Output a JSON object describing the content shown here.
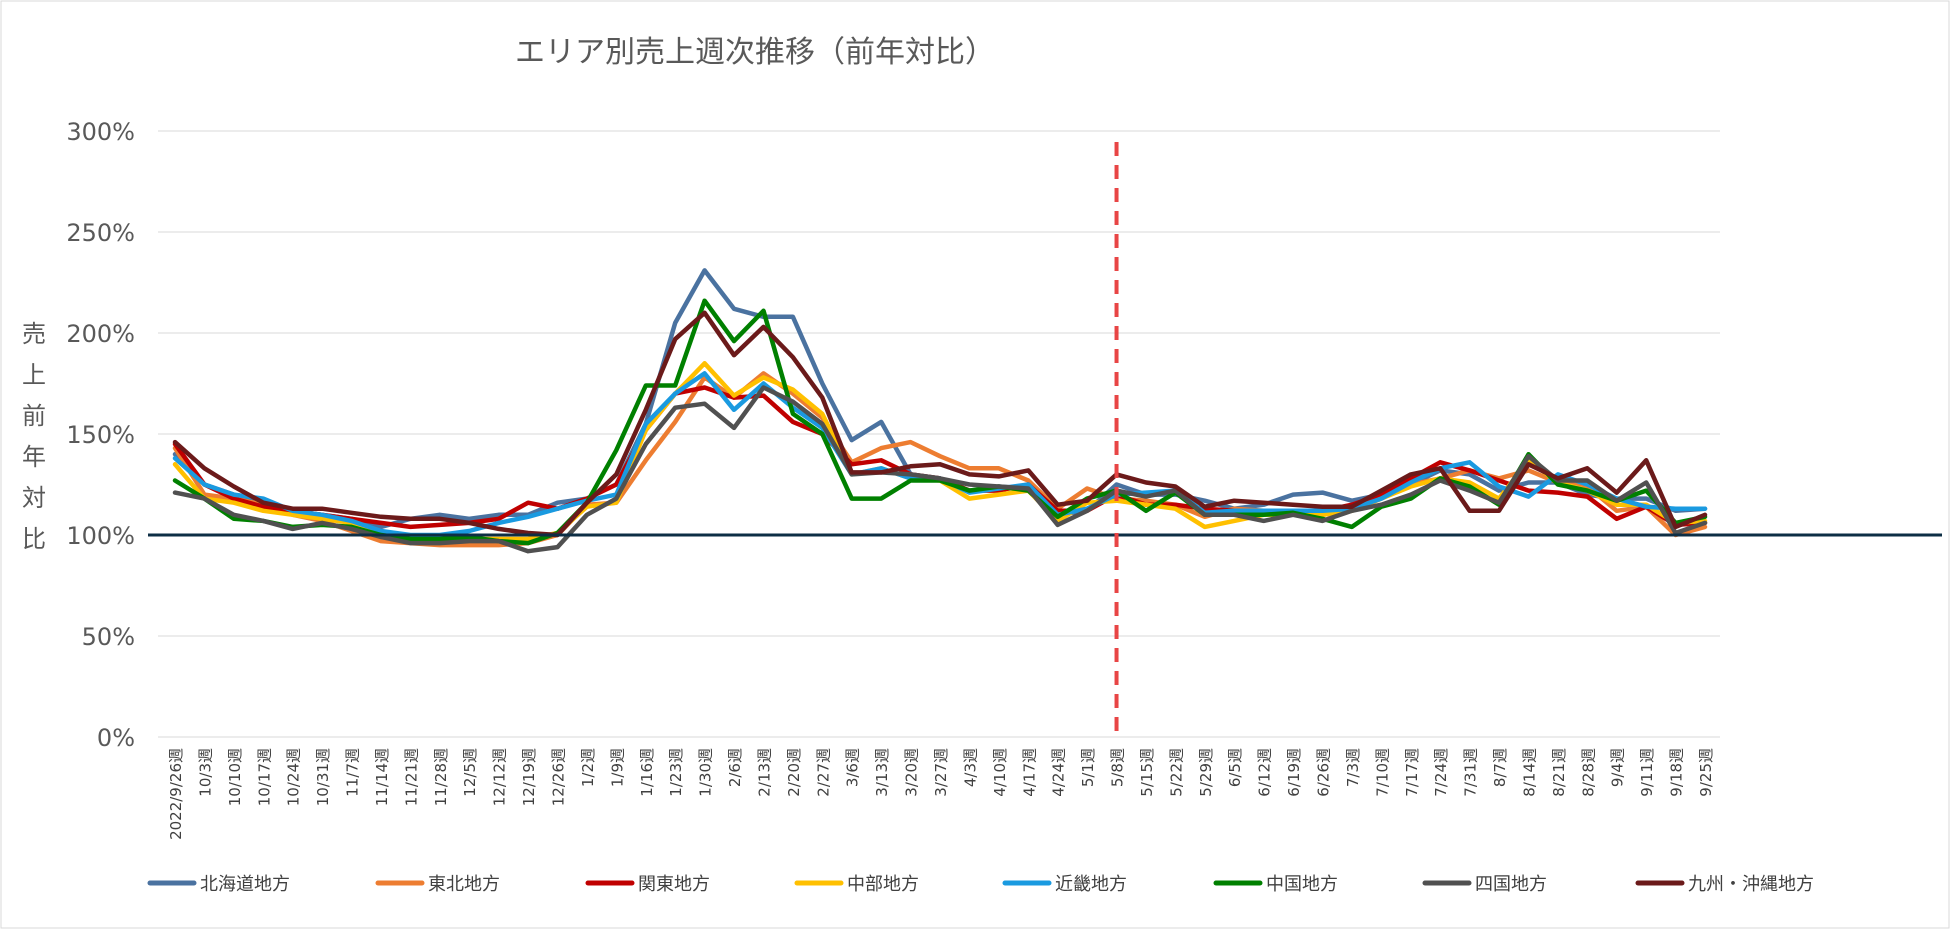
{
  "chart_data": {
    "type": "line",
    "title": "エリア別売上週次推移（前年対比）",
    "ylabel": "売上前年対比",
    "xlabel": "",
    "ylim": [
      0,
      300
    ],
    "yticks": [
      "0%",
      "50%",
      "100%",
      "150%",
      "200%",
      "250%",
      "300%"
    ],
    "yticks_values": [
      0,
      50,
      100,
      150,
      200,
      250,
      300
    ],
    "grid": true,
    "legend_position": "bottom",
    "reference_line_y": 100,
    "vertical_marker_category": "5/8週",
    "categories": [
      "2022/9/26週",
      "10/3週",
      "10/10週",
      "10/17週",
      "10/24週",
      "10/31週",
      "11/7週",
      "11/14週",
      "11/21週",
      "11/28週",
      "12/5週",
      "12/12週",
      "12/19週",
      "12/26週",
      "1/2週",
      "1/9週",
      "1/16週",
      "1/23週",
      "1/30週",
      "2/6週",
      "2/13週",
      "2/20週",
      "2/27週",
      "3/6週",
      "3/13週",
      "3/20週",
      "3/27週",
      "4/3週",
      "4/10週",
      "4/17週",
      "4/24週",
      "5/1週",
      "5/8週",
      "5/15週",
      "5/22週",
      "5/29週",
      "6/5週",
      "6/12週",
      "6/19週",
      "6/26週",
      "7/3週",
      "7/10週",
      "7/17週",
      "7/24週",
      "7/31週",
      "8/7週",
      "8/14週",
      "8/21週",
      "8/28週",
      "9/4週",
      "9/11週",
      "9/18週",
      "9/25週"
    ],
    "series": [
      {
        "name": "北海道地方",
        "color": "#4a72a0",
        "values": [
          140,
          125,
          120,
          115,
          112,
          110,
          108,
          104,
          108,
          110,
          108,
          110,
          110,
          116,
          118,
          125,
          155,
          205,
          231,
          212,
          208,
          208,
          175,
          147,
          156,
          130,
          128,
          122,
          124,
          123,
          110,
          112,
          125,
          120,
          120,
          117,
          113,
          115,
          120,
          121,
          117,
          120,
          125,
          132,
          130,
          122,
          126,
          126,
          120,
          118,
          118,
          112,
          113
        ]
      },
      {
        "name": "東北地方",
        "color": "#ed7d31",
        "values": [
          143,
          120,
          118,
          115,
          110,
          107,
          102,
          97,
          96,
          95,
          95,
          95,
          96,
          100,
          115,
          116,
          137,
          156,
          178,
          168,
          180,
          170,
          158,
          136,
          143,
          146,
          139,
          133,
          133,
          127,
          113,
          123,
          118,
          117,
          115,
          109,
          113,
          112,
          111,
          110,
          112,
          118,
          125,
          128,
          132,
          128,
          132,
          126,
          124,
          112,
          114,
          100,
          104
        ]
      },
      {
        "name": "関東地方",
        "color": "#c00000",
        "values": [
          145,
          125,
          118,
          114,
          112,
          110,
          108,
          106,
          104,
          105,
          106,
          108,
          116,
          113,
          118,
          125,
          152,
          170,
          173,
          168,
          169,
          156,
          150,
          135,
          137,
          130,
          128,
          122,
          122,
          125,
          112,
          112,
          120,
          115,
          115,
          113,
          112,
          112,
          112,
          112,
          115,
          120,
          128,
          136,
          132,
          127,
          122,
          121,
          119,
          108,
          114,
          105,
          106
        ]
      },
      {
        "name": "中部地方",
        "color": "#ffc000",
        "values": [
          135,
          118,
          116,
          112,
          110,
          108,
          106,
          101,
          99,
          98,
          98,
          98,
          98,
          101,
          114,
          116,
          152,
          170,
          185,
          169,
          178,
          172,
          160,
          130,
          133,
          128,
          127,
          118,
          120,
          122,
          107,
          116,
          117,
          115,
          113,
          104,
          107,
          110,
          110,
          110,
          112,
          118,
          124,
          128,
          126,
          118,
          137,
          126,
          122,
          115,
          115,
          106,
          107
        ]
      },
      {
        "name": "近畿地方",
        "color": "#1a9ae0",
        "values": [
          138,
          125,
          120,
          118,
          112,
          110,
          107,
          102,
          100,
          100,
          102,
          106,
          109,
          113,
          117,
          120,
          155,
          170,
          180,
          162,
          175,
          163,
          153,
          130,
          133,
          128,
          128,
          121,
          123,
          125,
          110,
          113,
          120,
          121,
          122,
          111,
          112,
          112,
          112,
          112,
          113,
          118,
          126,
          133,
          136,
          124,
          119,
          130,
          125,
          118,
          114,
          113,
          113
        ]
      },
      {
        "name": "中国地方",
        "color": "#008000",
        "values": [
          127,
          118,
          108,
          107,
          104,
          105,
          104,
          100,
          98,
          98,
          99,
          97,
          96,
          101,
          116,
          142,
          174,
          174,
          216,
          196,
          211,
          160,
          150,
          118,
          118,
          127,
          127,
          122,
          124,
          122,
          109,
          118,
          122,
          112,
          121,
          110,
          110,
          110,
          111,
          108,
          104,
          114,
          118,
          128,
          124,
          115,
          140,
          125,
          122,
          117,
          122,
          106,
          109
        ]
      },
      {
        "name": "四国地方",
        "color": "#505050",
        "values": [
          121,
          118,
          110,
          107,
          103,
          106,
          103,
          99,
          96,
          96,
          97,
          97,
          92,
          94,
          110,
          118,
          145,
          163,
          165,
          153,
          173,
          166,
          155,
          130,
          131,
          130,
          128,
          125,
          124,
          123,
          105,
          112,
          122,
          119,
          122,
          110,
          110,
          107,
          110,
          107,
          112,
          115,
          120,
          127,
          122,
          116,
          139,
          127,
          127,
          117,
          126,
          101,
          106
        ]
      },
      {
        "name": "九州・沖縄地方",
        "color": "#6b1a1a",
        "values": [
          146,
          133,
          124,
          116,
          113,
          113,
          111,
          109,
          108,
          108,
          106,
          103,
          101,
          100,
          116,
          130,
          162,
          197,
          210,
          189,
          203,
          188,
          168,
          131,
          131,
          134,
          135,
          130,
          129,
          132,
          115,
          117,
          130,
          126,
          124,
          114,
          117,
          116,
          115,
          114,
          114,
          122,
          130,
          133,
          112,
          112,
          135,
          128,
          133,
          121,
          137,
          104,
          110
        ]
      }
    ]
  }
}
